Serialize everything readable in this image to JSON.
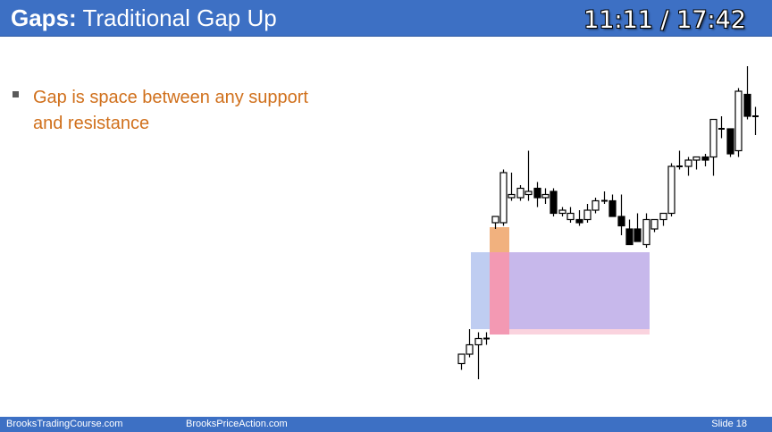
{
  "slide": {
    "title_bold": "Gaps:",
    "title_rest": " Traditional Gap Up",
    "timer": "11:11 / 17:42",
    "bullets": [
      "Gap is space between any support and resistance"
    ],
    "footer_left": "BrooksTradingCourse.com",
    "footer_center": "BrooksPriceAction.com",
    "footer_right": "Slide  18",
    "colors": {
      "header_bg": "#3d70c4",
      "bullet_text": "#d0701c",
      "gap_orange": "#f0a870",
      "gap_pink": "#f080a0",
      "range_blue": "#b4c4ee",
      "range_purple": "#c4b4ea",
      "bull_candle": "#ffffff",
      "bear_candle": "#000000"
    }
  },
  "chart_data": {
    "type": "candlestick",
    "title": "",
    "xlabel": "",
    "ylabel": "",
    "ylim": [
      0,
      100
    ],
    "grid": false,
    "candles": [
      {
        "o": 5,
        "h": 8,
        "l": 3,
        "c": 8
      },
      {
        "o": 8,
        "h": 16,
        "l": 7,
        "c": 11
      },
      {
        "o": 11,
        "h": 15,
        "l": 0,
        "c": 13
      },
      {
        "o": 13,
        "h": 15,
        "l": 11,
        "c": 13
      },
      {
        "o": 50,
        "h": 52,
        "l": 48,
        "c": 52
      },
      {
        "o": 50,
        "h": 67,
        "l": 49,
        "c": 66
      },
      {
        "o": 58,
        "h": 66,
        "l": 57,
        "c": 59
      },
      {
        "o": 58,
        "h": 62,
        "l": 57,
        "c": 61
      },
      {
        "o": 59,
        "h": 73,
        "l": 57,
        "c": 60
      },
      {
        "o": 61,
        "h": 63,
        "l": 55,
        "c": 58
      },
      {
        "o": 58,
        "h": 61,
        "l": 56,
        "c": 59
      },
      {
        "o": 60,
        "h": 61,
        "l": 52,
        "c": 53
      },
      {
        "o": 53,
        "h": 55,
        "l": 52,
        "c": 54
      },
      {
        "o": 51,
        "h": 55,
        "l": 50,
        "c": 53
      },
      {
        "o": 51,
        "h": 54,
        "l": 49,
        "c": 50
      },
      {
        "o": 51,
        "h": 56,
        "l": 50,
        "c": 54
      },
      {
        "o": 54,
        "h": 58,
        "l": 53,
        "c": 57
      },
      {
        "o": 57,
        "h": 60,
        "l": 56,
        "c": 57
      },
      {
        "o": 57,
        "h": 59,
        "l": 52,
        "c": 52
      },
      {
        "o": 52,
        "h": 59,
        "l": 46,
        "c": 49
      },
      {
        "o": 48,
        "h": 51,
        "l": 43,
        "c": 43
      },
      {
        "o": 48,
        "h": 53,
        "l": 44,
        "c": 44
      },
      {
        "o": 43,
        "h": 53,
        "l": 42,
        "c": 51
      },
      {
        "o": 48,
        "h": 51,
        "l": 47,
        "c": 51
      },
      {
        "o": 51,
        "h": 52,
        "l": 49,
        "c": 53
      },
      {
        "o": 53,
        "h": 69,
        "l": 52,
        "c": 68
      },
      {
        "o": 68,
        "h": 73,
        "l": 67,
        "c": 68
      },
      {
        "o": 68,
        "h": 71,
        "l": 65,
        "c": 70
      },
      {
        "o": 70,
        "h": 71,
        "l": 67,
        "c": 71
      },
      {
        "o": 71,
        "h": 72,
        "l": 68,
        "c": 70
      },
      {
        "o": 71,
        "h": 83,
        "l": 65,
        "c": 83
      },
      {
        "o": 80,
        "h": 84,
        "l": 77,
        "c": 80
      },
      {
        "o": 80,
        "h": 80,
        "l": 71,
        "c": 72
      },
      {
        "o": 73,
        "h": 93,
        "l": 71,
        "c": 92
      },
      {
        "o": 91,
        "h": 100,
        "l": 83,
        "c": 84
      },
      {
        "o": 84,
        "h": 87,
        "l": 78,
        "c": 84
      }
    ]
  }
}
